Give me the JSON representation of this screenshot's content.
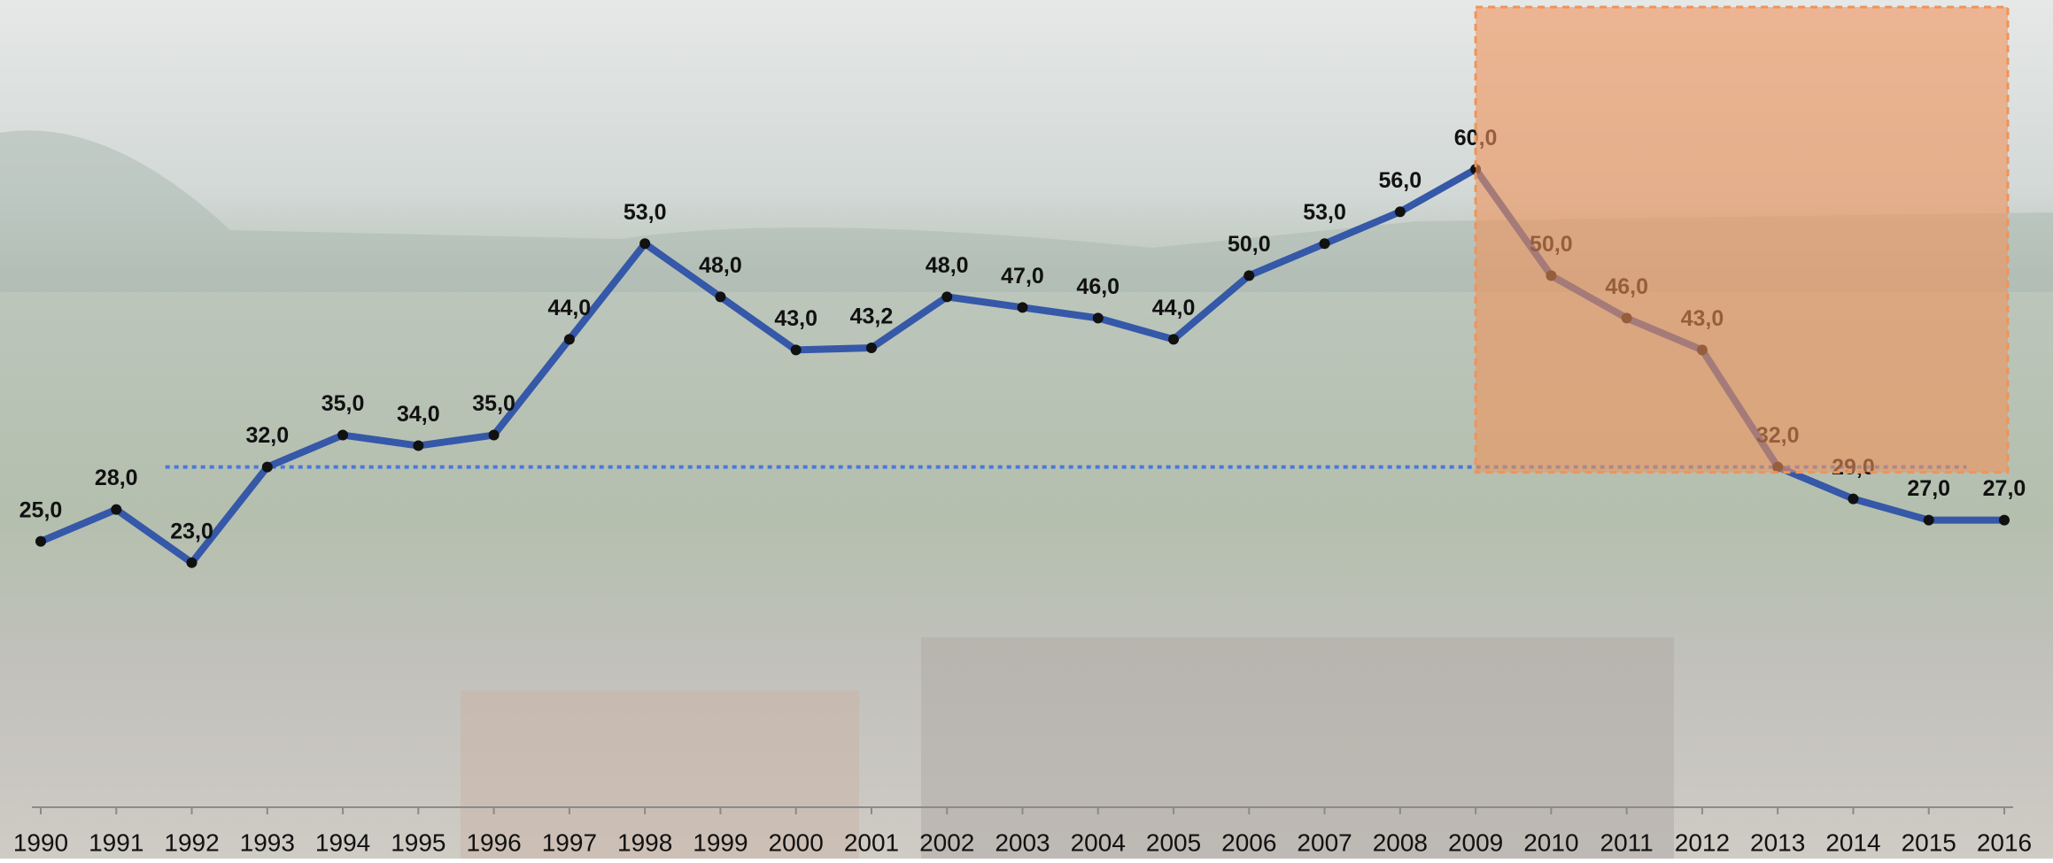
{
  "chart_data": {
    "type": "line",
    "categories": [
      "1990",
      "1991",
      "1992",
      "1993",
      "1994",
      "1995",
      "1996",
      "1997",
      "1998",
      "1999",
      "2000",
      "2001",
      "2002",
      "2003",
      "2004",
      "2005",
      "2006",
      "2007",
      "2008",
      "2009",
      "2010",
      "2011",
      "2012",
      "2013",
      "2014",
      "2015",
      "2016"
    ],
    "series": [
      {
        "color": "#3558a8",
        "values": [
          25,
          28,
          23,
          32,
          35,
          34,
          35,
          44,
          53,
          48,
          43,
          43.2,
          48,
          47,
          46,
          44,
          50,
          53,
          56,
          60,
          50,
          46,
          43,
          32,
          29,
          27,
          27
        ],
        "value_labels": [
          "25,0",
          "28,0",
          "23,0",
          "32,0",
          "35,0",
          "34,0",
          "35,0",
          "44,0",
          "53,0",
          "48,0",
          "43,0",
          "43,2",
          "48,0",
          "47,0",
          "46,0",
          "44,0",
          "50,0",
          "53,0",
          "56,0",
          "60,0",
          "50,0",
          "46,0",
          "43,0",
          "32,0",
          "29,0",
          "27,0",
          "27,0"
        ]
      }
    ],
    "ylim": [
      0,
      75
    ],
    "reference_line": {
      "value": 32,
      "color": "#4a78d8"
    },
    "highlight": {
      "x": [
        "2009",
        "2016"
      ],
      "color": "#f0935a"
    }
  }
}
